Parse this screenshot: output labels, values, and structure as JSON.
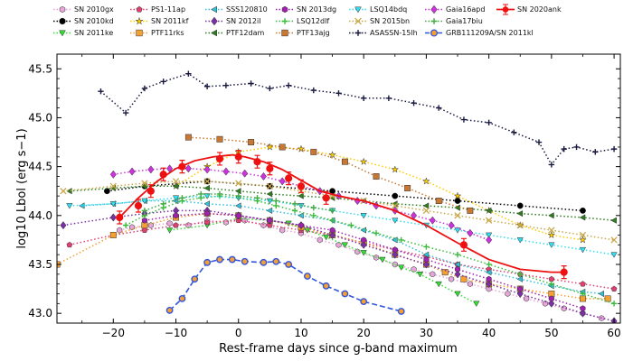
{
  "chart_data": {
    "type": "line",
    "title": "",
    "xlabel": "Rest-frame days since g-band maximum",
    "ylabel": "log10 Lbol (erg s−1)",
    "xlim": [
      -29,
      61
    ],
    "ylim": [
      42.9,
      45.65
    ],
    "xticks": [
      -20,
      -10,
      0,
      10,
      20,
      30,
      40,
      50,
      60
    ],
    "yticks": [
      43.0,
      43.5,
      44.0,
      44.5,
      45.0,
      45.5
    ],
    "legend_position": "top",
    "series": [
      {
        "name": "SN 2010gx",
        "color": "#e6a6d9",
        "marker": "hexagon",
        "x": [
          -19,
          -17,
          -14,
          -11,
          -8,
          -5,
          -2,
          1,
          4,
          7,
          10,
          13,
          16,
          19,
          22,
          25,
          28,
          31,
          34,
          37,
          40,
          43,
          46,
          49,
          52,
          55,
          58
        ],
        "y": [
          43.85,
          43.88,
          43.9,
          43.92,
          43.9,
          43.95,
          43.93,
          43.95,
          43.9,
          43.85,
          43.82,
          43.75,
          43.7,
          43.63,
          43.57,
          43.5,
          43.45,
          43.4,
          43.35,
          43.3,
          43.25,
          43.2,
          43.15,
          43.1,
          43.05,
          43.0,
          42.95
        ]
      },
      {
        "name": "SN 2010kd",
        "color": "#000000",
        "marker": "circle",
        "x": [
          -21,
          -15,
          -5,
          5,
          15,
          25,
          35,
          45,
          55
        ],
        "y": [
          44.25,
          44.3,
          44.35,
          44.3,
          44.25,
          44.2,
          44.15,
          44.1,
          44.05
        ]
      },
      {
        "name": "SN 2011ke",
        "color": "#33dd33",
        "marker": "triangle-down",
        "x": [
          -11,
          -5,
          0,
          5,
          8,
          11,
          14,
          17,
          20,
          23,
          26,
          29,
          32,
          35,
          38
        ],
        "y": [
          43.85,
          43.9,
          43.97,
          43.95,
          43.92,
          43.85,
          43.78,
          43.7,
          43.62,
          43.55,
          43.47,
          43.4,
          43.3,
          43.2,
          43.1
        ]
      },
      {
        "name": "PS1-11ap",
        "color": "#e04070",
        "marker": "pentagon",
        "x": [
          -27,
          -20,
          -15,
          -10,
          -5,
          0,
          5,
          10,
          15,
          20,
          25,
          30,
          35,
          40,
          45,
          50,
          55,
          60
        ],
        "y": [
          43.7,
          43.8,
          43.85,
          43.9,
          43.93,
          43.95,
          43.9,
          43.85,
          43.8,
          43.72,
          43.65,
          43.58,
          43.5,
          43.45,
          43.4,
          43.35,
          43.3,
          43.25
        ]
      },
      {
        "name": "SN 2011kf",
        "color": "#ffcc00",
        "marker": "star",
        "x": [
          -10,
          -5,
          0,
          5,
          10,
          15,
          20,
          25,
          30,
          35,
          40,
          45,
          50,
          55
        ],
        "y": [
          44.3,
          44.5,
          44.65,
          44.7,
          44.68,
          44.62,
          44.55,
          44.47,
          44.35,
          44.2,
          44.05,
          43.9,
          43.8,
          43.75
        ]
      },
      {
        "name": "PTF11rks",
        "color": "#f5a030",
        "marker": "square",
        "x": [
          -29,
          -20,
          -15,
          -10,
          -5,
          0,
          5,
          10,
          15,
          20,
          25,
          30,
          33,
          36,
          40,
          45,
          50,
          55,
          59
        ],
        "y": [
          43.5,
          43.8,
          43.9,
          43.98,
          44.02,
          44.0,
          43.95,
          43.88,
          43.8,
          43.72,
          43.6,
          43.5,
          43.42,
          43.35,
          43.3,
          43.25,
          43.2,
          43.15,
          43.15
        ]
      },
      {
        "name": "SSS120810",
        "color": "#33c0d9",
        "marker": "triangle-left",
        "x": [
          -25,
          -20,
          -15,
          -10,
          -5,
          0,
          5,
          10,
          15,
          20,
          25,
          30,
          35,
          40,
          45,
          50,
          55,
          58
        ],
        "y": [
          44.1,
          44.12,
          44.15,
          44.15,
          44.12,
          44.1,
          44.05,
          44.0,
          43.95,
          43.85,
          43.75,
          43.6,
          43.5,
          43.42,
          43.35,
          43.28,
          43.22,
          43.2
        ]
      },
      {
        "name": "SN 2012il",
        "color": "#7b2fa5",
        "marker": "diamond",
        "x": [
          -28,
          -20,
          -15,
          -10,
          -5,
          0,
          5,
          10,
          15,
          20,
          25,
          30,
          35,
          40,
          45,
          50,
          55,
          60
        ],
        "y": [
          43.9,
          43.98,
          44.02,
          44.05,
          44.05,
          44.0,
          43.95,
          43.9,
          43.8,
          43.7,
          43.6,
          43.5,
          43.4,
          43.3,
          43.2,
          43.1,
          43.0,
          42.92
        ]
      },
      {
        "name": "PTF12dam",
        "color": "#2e7d1e",
        "marker": "triangle-left",
        "x": [
          -27,
          -20,
          -15,
          -10,
          -5,
          0,
          5,
          10,
          15,
          20,
          25,
          30,
          35,
          40,
          45,
          50,
          55,
          60
        ],
        "y": [
          44.25,
          44.28,
          44.3,
          44.3,
          44.28,
          44.25,
          44.22,
          44.2,
          44.18,
          44.15,
          44.12,
          44.1,
          44.08,
          44.05,
          44.02,
          44.0,
          43.98,
          43.95
        ]
      },
      {
        "name": "SN 2013dg",
        "color": "#a020b0",
        "marker": "hexagon",
        "x": [
          -15,
          -10,
          -5,
          0,
          5,
          10,
          15,
          20,
          25,
          30,
          35,
          40,
          45,
          50,
          55
        ],
        "y": [
          43.95,
          44.0,
          44.02,
          44.0,
          43.95,
          43.9,
          43.85,
          43.75,
          43.65,
          43.55,
          43.45,
          43.35,
          43.25,
          43.15,
          43.05
        ]
      },
      {
        "name": "LSQ12dlf",
        "color": "#3dbb3d",
        "marker": "plus",
        "x": [
          -18,
          -15,
          -12,
          -9,
          -6,
          -3,
          0,
          3,
          6,
          9,
          12,
          15,
          18,
          22,
          26,
          30,
          35,
          40,
          45,
          50,
          55,
          60
        ],
        "y": [
          43.9,
          44.0,
          44.08,
          44.15,
          44.18,
          44.2,
          44.18,
          44.15,
          44.1,
          44.05,
          44.0,
          43.95,
          43.9,
          43.82,
          43.75,
          43.68,
          43.6,
          43.5,
          43.4,
          43.3,
          43.2,
          43.1
        ]
      },
      {
        "name": "PTF13ajg",
        "color": "#c87832",
        "marker": "square",
        "x": [
          -8,
          -3,
          2,
          7,
          12,
          17,
          22,
          27,
          32,
          37
        ],
        "y": [
          44.8,
          44.78,
          44.75,
          44.7,
          44.65,
          44.55,
          44.4,
          44.28,
          44.15,
          44.05
        ]
      },
      {
        "name": "LSQ14bdq",
        "color": "#33ddee",
        "marker": "triangle-down",
        "x": [
          -27,
          -20,
          -15,
          -10,
          -5,
          0,
          5,
          10,
          15,
          20,
          25,
          30,
          35,
          40,
          45,
          50,
          55,
          60
        ],
        "y": [
          44.1,
          44.12,
          44.15,
          44.18,
          44.2,
          44.18,
          44.15,
          44.1,
          44.05,
          44.0,
          43.95,
          43.9,
          43.85,
          43.8,
          43.75,
          43.7,
          43.65,
          43.6
        ]
      },
      {
        "name": "SN 2015bn",
        "color": "#c9a84a",
        "marker": "x",
        "x": [
          -28,
          -20,
          -15,
          -10,
          -5,
          0,
          5,
          10,
          15,
          20,
          25,
          30,
          35,
          40,
          45,
          50,
          55,
          60
        ],
        "y": [
          44.25,
          44.3,
          44.33,
          44.35,
          44.35,
          44.33,
          44.3,
          44.25,
          44.2,
          44.15,
          44.1,
          44.05,
          44.0,
          43.95,
          43.9,
          43.85,
          43.8,
          43.75
        ]
      },
      {
        "name": "ASASSN-15lh",
        "color": "#1a1a40",
        "marker": "plus",
        "x": [
          -22,
          -18,
          -15,
          -12,
          -8,
          -5,
          -2,
          2,
          5,
          8,
          12,
          16,
          20,
          24,
          28,
          32,
          36,
          40,
          44,
          48,
          50,
          52,
          54,
          57,
          60
        ],
        "y": [
          45.27,
          45.05,
          45.3,
          45.37,
          45.45,
          45.32,
          45.33,
          45.35,
          45.3,
          45.33,
          45.28,
          45.25,
          45.2,
          45.2,
          45.15,
          45.1,
          44.98,
          44.95,
          44.85,
          44.75,
          44.52,
          44.68,
          44.7,
          44.65,
          44.68
        ]
      },
      {
        "name": "Gaia16apd",
        "color": "#cc33dd",
        "marker": "diamond",
        "x": [
          -20,
          -17,
          -14,
          -11,
          -8,
          -5,
          -2,
          1,
          4,
          7,
          10,
          13,
          16,
          19,
          22,
          25,
          28,
          31,
          34,
          37,
          40
        ],
        "y": [
          44.42,
          44.45,
          44.47,
          44.48,
          44.48,
          44.47,
          44.45,
          44.43,
          44.4,
          44.35,
          44.3,
          44.25,
          44.2,
          44.15,
          44.1,
          44.05,
          44.0,
          43.95,
          43.9,
          43.82,
          43.75
        ]
      },
      {
        "name": "Gaia17biu",
        "color": "#44aa44",
        "marker": "plus",
        "x": [
          -15,
          -12,
          -9,
          -6,
          -3,
          0,
          3,
          6,
          9,
          12,
          15
        ],
        "y": [
          44.05,
          44.12,
          44.18,
          44.22,
          44.22,
          44.2,
          44.18,
          44.15,
          44.12,
          44.08,
          44.05
        ]
      },
      {
        "name": "GRB111209A/SN 2011kl",
        "color": "#3355dd",
        "marker": "circle",
        "x": [
          -11,
          -9,
          -7,
          -5,
          -3,
          -1,
          1,
          4,
          6,
          8,
          11,
          14,
          17,
          20,
          26
        ],
        "y": [
          43.03,
          43.15,
          43.35,
          43.52,
          43.55,
          43.55,
          43.53,
          43.52,
          43.53,
          43.5,
          43.38,
          43.28,
          43.2,
          43.12,
          43.02
        ]
      },
      {
        "name": "SN 2020ank",
        "color": "#ee1111",
        "marker": "errorbar",
        "x": [
          -19,
          -16,
          -14,
          -12,
          -9,
          -3,
          0,
          3,
          5,
          8,
          10,
          14,
          36,
          52
        ],
        "y": [
          43.98,
          44.1,
          44.25,
          44.42,
          44.5,
          44.58,
          44.6,
          44.55,
          44.48,
          44.38,
          44.3,
          44.18,
          43.7,
          43.42
        ],
        "smooth": {
          "x": [
            -19,
            -16,
            -13,
            -10,
            -7,
            -4,
            -1,
            1,
            4,
            7,
            10,
            13,
            16,
            20,
            25,
            30,
            35,
            40,
            45,
            50,
            52
          ],
          "y": [
            43.98,
            44.18,
            44.35,
            44.48,
            44.56,
            44.6,
            44.62,
            44.6,
            44.55,
            44.47,
            44.36,
            44.25,
            44.2,
            44.15,
            44.05,
            43.9,
            43.72,
            43.55,
            43.45,
            43.42,
            43.42
          ]
        }
      }
    ]
  }
}
